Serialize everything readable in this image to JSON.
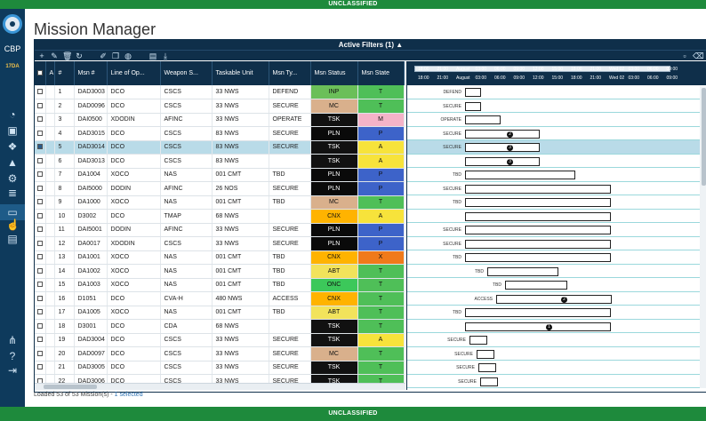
{
  "banner": {
    "top": "UNCLASSIFIED",
    "bottom": "UNCLASSIFIED"
  },
  "app": {
    "org": "CBP",
    "org_sub": "17DA",
    "title": "Mission Manager"
  },
  "sidebar": {
    "icons": [
      "pie-chart-icon",
      "briefcase-icon",
      "network-icon",
      "warning-icon",
      "share-icon",
      "database-icon",
      "monitor-icon",
      "thumbs-up-icon",
      "document-icon",
      "org-chart-icon",
      "help-icon",
      "logout-icon"
    ]
  },
  "filters": {
    "label": "Active Filters (1)",
    "arrow": "▲"
  },
  "toolbar": {
    "icons": [
      "add-icon",
      "edit-icon",
      "delete-icon",
      "refresh-icon",
      "edit-box-icon",
      "copy-icon",
      "globe-icon",
      "export-icon",
      "download-icon",
      "save-icon",
      "eraser-icon"
    ]
  },
  "columns": [
    "A",
    "#",
    "Msn #",
    "Line of Op...",
    "Weapon S...",
    "Taskable Unit",
    "Msn Ty...",
    "Msn Status",
    "Msn State"
  ],
  "colors": {
    "INP": "#6bbf59",
    "MC": "#d9b08c",
    "TSK": "#111111",
    "PLN": "#0a0a0a",
    "CNX": "#ffb300",
    "ABT": "#f2e35b",
    "ONC": "#3cc85a",
    "T": "#4fbf58",
    "M": "#f4b3c8",
    "P": "#3d63c9",
    "A": "#f7e33b",
    "X": "#f07a1a"
  },
  "rows": [
    {
      "n": "1",
      "msn": "DAD3003",
      "loo": "DCO",
      "ws": "CSCS",
      "unit": "33 NWS",
      "type": "DEFEND",
      "status": "INP",
      "state": "T",
      "checked": false
    },
    {
      "n": "2",
      "msn": "DAD0096",
      "loo": "DCO",
      "ws": "CSCS",
      "unit": "33 NWS",
      "type": "SECURE",
      "status": "MC",
      "state": "T",
      "checked": false
    },
    {
      "n": "3",
      "msn": "DAI0500",
      "loo": "XDODIN",
      "ws": "AFINC",
      "unit": "33 NWS",
      "type": "OPERATE",
      "status": "TSK",
      "state": "M",
      "checked": false
    },
    {
      "n": "4",
      "msn": "DAD3015",
      "loo": "DCO",
      "ws": "CSCS",
      "unit": "83 NWS",
      "type": "SECURE",
      "status": "PLN",
      "state": "P",
      "checked": false
    },
    {
      "n": "5",
      "msn": "DAD3014",
      "loo": "DCO",
      "ws": "CSCS",
      "unit": "83 NWS",
      "type": "SECURE",
      "status": "TSK",
      "state": "A",
      "checked": true
    },
    {
      "n": "6",
      "msn": "DAD3013",
      "loo": "DCO",
      "ws": "CSCS",
      "unit": "83 NWS",
      "type": "",
      "status": "TSK",
      "state": "A",
      "checked": false
    },
    {
      "n": "7",
      "msn": "DA1004",
      "loo": "XOCO",
      "ws": "NAS",
      "unit": "001 CMT",
      "type": "TBD",
      "status": "PLN",
      "state": "P",
      "checked": false
    },
    {
      "n": "8",
      "msn": "DAI5000",
      "loo": "DODIN",
      "ws": "AFINC",
      "unit": "26 NOS",
      "type": "SECURE",
      "status": "PLN",
      "state": "P",
      "checked": false
    },
    {
      "n": "9",
      "msn": "DA1000",
      "loo": "XOCO",
      "ws": "NAS",
      "unit": "001 CMT",
      "type": "TBD",
      "status": "MC",
      "state": "T",
      "checked": false
    },
    {
      "n": "10",
      "msn": "D3002",
      "loo": "DCO",
      "ws": "TMAP",
      "unit": "68 NWS",
      "type": "",
      "status": "CNX",
      "state": "A",
      "checked": false
    },
    {
      "n": "11",
      "msn": "DAI5001",
      "loo": "DODIN",
      "ws": "AFINC",
      "unit": "33 NWS",
      "type": "SECURE",
      "status": "PLN",
      "state": "P",
      "checked": false
    },
    {
      "n": "12",
      "msn": "DA0017",
      "loo": "XDODIN",
      "ws": "CSCS",
      "unit": "33 NWS",
      "type": "SECURE",
      "status": "PLN",
      "state": "P",
      "checked": false
    },
    {
      "n": "13",
      "msn": "DA1001",
      "loo": "XOCO",
      "ws": "NAS",
      "unit": "001 CMT",
      "type": "TBD",
      "status": "CNX",
      "state": "X",
      "checked": false
    },
    {
      "n": "14",
      "msn": "DA1002",
      "loo": "XOCO",
      "ws": "NAS",
      "unit": "001 CMT",
      "type": "TBD",
      "status": "ABT",
      "state": "T",
      "checked": false
    },
    {
      "n": "15",
      "msn": "DA1003",
      "loo": "XOCO",
      "ws": "NAS",
      "unit": "001 CMT",
      "type": "TBD",
      "status": "ONC",
      "state": "T",
      "checked": false
    },
    {
      "n": "16",
      "msn": "D1051",
      "loo": "DCO",
      "ws": "CVA-H",
      "unit": "480 NWS",
      "type": "ACCESS",
      "status": "CNX",
      "state": "T",
      "checked": false
    },
    {
      "n": "17",
      "msn": "DA1005",
      "loo": "XOCO",
      "ws": "NAS",
      "unit": "001 CMT",
      "type": "TBD",
      "status": "ABT",
      "state": "T",
      "checked": false
    },
    {
      "n": "18",
      "msn": "D3001",
      "loo": "DCO",
      "ws": "CDA",
      "unit": "68 NWS",
      "type": "",
      "status": "TSK",
      "state": "T",
      "checked": false
    },
    {
      "n": "19",
      "msn": "DAD3004",
      "loo": "DCO",
      "ws": "CSCS",
      "unit": "33 NWS",
      "type": "SECURE",
      "status": "TSK",
      "state": "A",
      "checked": false
    },
    {
      "n": "20",
      "msn": "DAD0097",
      "loo": "DCO",
      "ws": "CSCS",
      "unit": "33 NWS",
      "type": "SECURE",
      "status": "MC",
      "state": "T",
      "checked": false
    },
    {
      "n": "21",
      "msn": "DAD3005",
      "loo": "DCO",
      "ws": "CSCS",
      "unit": "33 NWS",
      "type": "SECURE",
      "status": "TSK",
      "state": "T",
      "checked": false
    },
    {
      "n": "22",
      "msn": "DAD3006",
      "loo": "DCO",
      "ws": "CSCS",
      "unit": "33 NWS",
      "type": "SECURE",
      "status": "TSK",
      "state": "T",
      "checked": false
    }
  ],
  "gantt": {
    "ticks": [
      "18:00",
      "21:00",
      "August",
      "03:00",
      "06:00",
      "09:00",
      "12:00",
      "15:00",
      "18:00",
      "21:00",
      "Wed 02",
      "03:00",
      "06:00",
      "09:00"
    ],
    "labels": [
      "DEFEND",
      "SECURE",
      "OPERATE",
      "SECURE",
      "SECURE",
      "",
      "TBD",
      "SECURE",
      "TBD",
      "",
      "SECURE",
      "SECURE",
      "TBD",
      "TBD",
      "TBD",
      "ACCESS",
      "TBD",
      "",
      "SECURE",
      "SECURE",
      "SECURE",
      "SECURE"
    ],
    "markers": [
      "",
      "",
      "",
      "2",
      "3",
      "3",
      "",
      "",
      "",
      "",
      "",
      "",
      "",
      "",
      "",
      "2",
      "",
      "1",
      "",
      "",
      "",
      ""
    ]
  },
  "status": {
    "text": "Loaded 53 of 53 Mission(s) - ",
    "selected": "1 selected"
  }
}
